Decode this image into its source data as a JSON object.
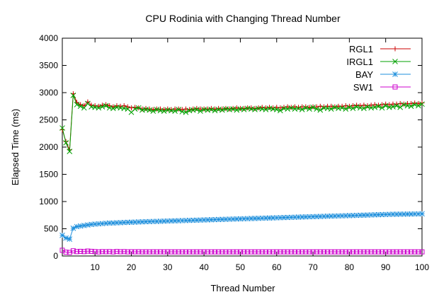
{
  "chart_data": {
    "type": "line",
    "title": "CPU Rodinia with Changing Thread Number",
    "xlabel": "Thread Number",
    "ylabel": "Elapsed Time (ms)",
    "xlim": [
      1,
      100
    ],
    "ylim": [
      0,
      4000
    ],
    "xticks": [
      10,
      20,
      30,
      40,
      50,
      60,
      70,
      80,
      90,
      100
    ],
    "yticks": [
      0,
      500,
      1000,
      1500,
      2000,
      2500,
      3000,
      3500,
      4000
    ],
    "grid": false,
    "legend_position": "top-right",
    "x": [
      1,
      2,
      3,
      4,
      5,
      6,
      7,
      8,
      9,
      10,
      11,
      12,
      13,
      14,
      15,
      16,
      17,
      18,
      19,
      20,
      21,
      22,
      23,
      24,
      25,
      26,
      27,
      28,
      29,
      30,
      31,
      32,
      33,
      34,
      35,
      36,
      37,
      38,
      39,
      40,
      41,
      42,
      43,
      44,
      45,
      46,
      47,
      48,
      49,
      50,
      51,
      52,
      53,
      54,
      55,
      56,
      57,
      58,
      59,
      60,
      61,
      62,
      63,
      64,
      65,
      66,
      67,
      68,
      69,
      70,
      71,
      72,
      73,
      74,
      75,
      76,
      77,
      78,
      79,
      80,
      81,
      82,
      83,
      84,
      85,
      86,
      87,
      88,
      89,
      90,
      91,
      92,
      93,
      94,
      95,
      96,
      97,
      98,
      99,
      100
    ],
    "series": [
      {
        "name": "RGL1",
        "color": "#cc0000",
        "marker": "plus",
        "values": [
          2320,
          2100,
          1950,
          2980,
          2820,
          2780,
          2760,
          2830,
          2770,
          2760,
          2750,
          2770,
          2780,
          2760,
          2740,
          2760,
          2750,
          2760,
          2740,
          2720,
          2730,
          2720,
          2700,
          2710,
          2700,
          2690,
          2700,
          2700,
          2690,
          2700,
          2690,
          2700,
          2700,
          2690,
          2700,
          2690,
          2700,
          2710,
          2700,
          2700,
          2700,
          2710,
          2700,
          2710,
          2700,
          2710,
          2700,
          2710,
          2720,
          2710,
          2710,
          2720,
          2720,
          2710,
          2720,
          2730,
          2720,
          2730,
          2720,
          2730,
          2720,
          2730,
          2740,
          2730,
          2740,
          2730,
          2740,
          2740,
          2730,
          2740,
          2740,
          2750,
          2740,
          2750,
          2750,
          2740,
          2750,
          2750,
          2760,
          2750,
          2760,
          2770,
          2760,
          2770,
          2760,
          2770,
          2780,
          2770,
          2780,
          2790,
          2780,
          2790,
          2790,
          2800,
          2790,
          2800,
          2800,
          2810,
          2800,
          2810
        ]
      },
      {
        "name": "IRGL1",
        "color": "#00a000",
        "marker": "x",
        "values": [
          2350,
          2080,
          1920,
          2950,
          2780,
          2750,
          2720,
          2800,
          2740,
          2730,
          2720,
          2740,
          2760,
          2720,
          2710,
          2730,
          2720,
          2710,
          2700,
          2640,
          2700,
          2720,
          2680,
          2690,
          2680,
          2660,
          2690,
          2670,
          2660,
          2680,
          2670,
          2660,
          2690,
          2650,
          2640,
          2670,
          2680,
          2690,
          2660,
          2690,
          2680,
          2690,
          2670,
          2690,
          2680,
          2700,
          2690,
          2700,
          2680,
          2700,
          2690,
          2710,
          2700,
          2690,
          2710,
          2700,
          2690,
          2710,
          2700,
          2690,
          2670,
          2710,
          2700,
          2720,
          2700,
          2710,
          2690,
          2720,
          2700,
          2730,
          2700,
          2680,
          2720,
          2710,
          2700,
          2730,
          2710,
          2720,
          2700,
          2730,
          2710,
          2740,
          2720,
          2710,
          2740,
          2720,
          2730,
          2750,
          2720,
          2760,
          2730,
          2740,
          2760,
          2730,
          2780,
          2760,
          2750,
          2780,
          2760,
          2790
        ]
      },
      {
        "name": "BAY",
        "color": "#1e8fdc",
        "marker": "star",
        "values": [
          380,
          330,
          310,
          510,
          540,
          550,
          560,
          570,
          580,
          585,
          590,
          595,
          600,
          605,
          605,
          610,
          612,
          615,
          618,
          620,
          622,
          625,
          627,
          630,
          632,
          634,
          635,
          637,
          640,
          642,
          644,
          646,
          648,
          650,
          652,
          654,
          656,
          658,
          660,
          662,
          664,
          666,
          668,
          670,
          672,
          674,
          676,
          678,
          680,
          682,
          684,
          686,
          688,
          690,
          692,
          694,
          696,
          698,
          700,
          702,
          704,
          706,
          708,
          710,
          712,
          714,
          716,
          718,
          720,
          722,
          724,
          726,
          728,
          730,
          732,
          734,
          736,
          738,
          740,
          742,
          744,
          746,
          748,
          750,
          752,
          754,
          756,
          758,
          760,
          762,
          764,
          766,
          766,
          768,
          768,
          770,
          770,
          772,
          772,
          774
        ]
      },
      {
        "name": "SW1",
        "color": "#cc00cc",
        "marker": "square",
        "values": [
          105,
          70,
          65,
          95,
          80,
          85,
          80,
          90,
          85,
          80,
          75,
          80,
          78,
          80,
          75,
          82,
          78,
          80,
          76,
          78,
          77,
          78,
          76,
          77,
          76,
          77,
          76,
          77,
          76,
          77,
          76,
          76,
          76,
          76,
          76,
          76,
          76,
          76,
          76,
          76,
          76,
          76,
          76,
          76,
          76,
          76,
          76,
          76,
          76,
          76,
          76,
          76,
          76,
          76,
          76,
          76,
          76,
          76,
          76,
          76,
          76,
          76,
          76,
          76,
          76,
          76,
          76,
          76,
          76,
          76,
          76,
          76,
          76,
          76,
          76,
          76,
          76,
          76,
          76,
          76,
          76,
          76,
          76,
          76,
          76,
          76,
          76,
          76,
          76,
          76,
          76,
          76,
          76,
          76,
          76,
          76,
          76,
          76,
          76,
          76
        ]
      }
    ]
  }
}
